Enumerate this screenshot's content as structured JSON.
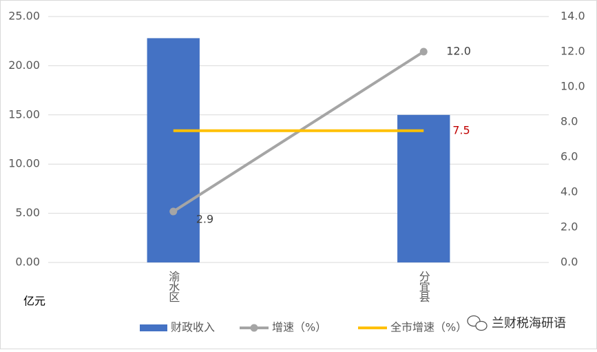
{
  "chart_data": {
    "type": "combo",
    "categories": [
      "渝水区",
      "分宜县"
    ],
    "series": [
      {
        "name": "财政收入",
        "type": "bar",
        "color": "#4472c4",
        "values": [
          22.8,
          15.0
        ]
      },
      {
        "name": "增速（%）",
        "type": "line",
        "axis": "y2",
        "color": "#a5a5a5",
        "markers": true,
        "values": [
          2.9,
          12.0
        ],
        "value_labels": [
          "2.9",
          "12.0"
        ],
        "label_color": "#404040"
      },
      {
        "name": "全市增速（%）",
        "type": "line",
        "axis": "y2",
        "color": "#ffc000",
        "markers": false,
        "values": [
          7.5,
          7.5
        ],
        "value_labels": [
          null,
          "7.5"
        ],
        "label_color": "#c00000"
      }
    ],
    "y_label": "亿元",
    "ylim": [
      0,
      25
    ],
    "yticks": [
      {
        "value": 0,
        "label": "0.00"
      },
      {
        "value": 5,
        "label": "5.00"
      },
      {
        "value": 10,
        "label": "10.00"
      },
      {
        "value": 15,
        "label": "15.00"
      },
      {
        "value": 20,
        "label": "20.00"
      },
      {
        "value": 25,
        "label": "25.00"
      }
    ],
    "y2lim": [
      0,
      14
    ],
    "y2ticks": [
      {
        "value": 0,
        "label": "0.0"
      },
      {
        "value": 2,
        "label": "2.0"
      },
      {
        "value": 4,
        "label": "4.0"
      },
      {
        "value": 6,
        "label": "6.0"
      },
      {
        "value": 8,
        "label": "8.0"
      },
      {
        "value": 10,
        "label": "10.0"
      },
      {
        "value": 12,
        "label": "12.0"
      },
      {
        "value": 14,
        "label": "14.0"
      }
    ],
    "grid": true,
    "legend": "bottom",
    "watermark": "兰财税海研语"
  }
}
